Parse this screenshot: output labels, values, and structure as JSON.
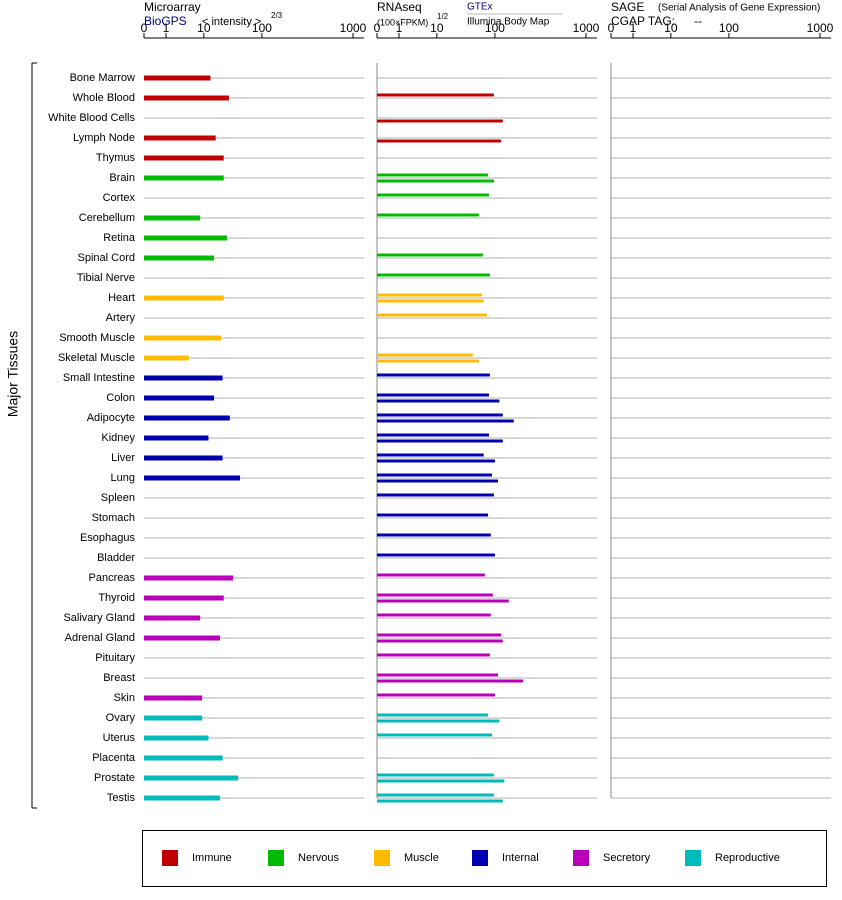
{
  "chart_data": {
    "type": "bar",
    "y_axis_label": "Major Tissues",
    "categories": [
      "Bone Marrow",
      "Whole Blood",
      "White Blood Cells",
      "Lymph Node",
      "Thymus",
      "Brain",
      "Cortex",
      "Cerebellum",
      "Retina",
      "Spinal Cord",
      "Tibial Nerve",
      "Heart",
      "Artery",
      "Smooth Muscle",
      "Skeletal Muscle",
      "Small Intestine",
      "Colon",
      "Adipocyte",
      "Kidney",
      "Liver",
      "Lung",
      "Spleen",
      "Stomach",
      "Esophagus",
      "Bladder",
      "Pancreas",
      "Thyroid",
      "Salivary Gland",
      "Adrenal Gland",
      "Pituitary",
      "Breast",
      "Skin",
      "Ovary",
      "Uterus",
      "Placenta",
      "Prostate",
      "Testis"
    ],
    "category_groups": [
      "Immune",
      "Immune",
      "Immune",
      "Immune",
      "Immune",
      "Nervous",
      "Nervous",
      "Nervous",
      "Nervous",
      "Nervous",
      "Nervous",
      "Muscle",
      "Muscle",
      "Muscle",
      "Muscle",
      "Internal",
      "Internal",
      "Internal",
      "Internal",
      "Internal",
      "Internal",
      "Internal",
      "Internal",
      "Internal",
      "Internal",
      "Secretory",
      "Secretory",
      "Secretory",
      "Secretory",
      "Secretory",
      "Secretory",
      "Secretory",
      "Reproductive",
      "Reproductive",
      "Reproductive",
      "Reproductive",
      "Reproductive"
    ],
    "legend": [
      {
        "name": "Immune",
        "color": "#c00000"
      },
      {
        "name": "Nervous",
        "color": "#00bb00"
      },
      {
        "name": "Muscle",
        "color": "#ffbb00"
      },
      {
        "name": "Internal",
        "color": "#0000b0"
      },
      {
        "name": "Secretory",
        "color": "#bb00bb"
      },
      {
        "name": "Reproductive",
        "color": "#00bbbb"
      }
    ],
    "xlim": [
      0,
      1000
    ],
    "xticks": [
      0,
      1,
      10,
      100,
      1000
    ],
    "panels": [
      {
        "title": "Microarray",
        "axis_label": "< intensity >",
        "axis_label_exponent": "2/3",
        "series": [
          {
            "name": "BioGPS",
            "values": [
              13,
              27,
              null,
              16,
              22,
              22,
              null,
              8,
              25,
              15,
              null,
              22,
              null,
              20,
              4,
              21,
              15,
              28,
              12,
              21,
              42,
              null,
              null,
              null,
              null,
              32,
              22,
              8,
              19,
              null,
              null,
              9,
              9,
              12,
              21,
              39,
              19
            ]
          }
        ]
      },
      {
        "title": "RNAseq",
        "axis_label": "(100×FPKM)",
        "axis_label_exponent": "1/2",
        "series": [
          {
            "name": "GTEx",
            "values": [
              null,
              96,
              null,
              null,
              null,
              76,
              79,
              53,
              null,
              62,
              82,
              60,
              73,
              null,
              42,
              82,
              79,
              122,
              79,
              64,
              89,
              96,
              76,
              85,
              100,
              67,
              92,
              85,
              117,
              82,
              108,
              100,
              76,
              89,
              null,
              96,
              96
            ]
          },
          {
            "name": "Illumina Body Map",
            "values": [
              null,
              null,
              122,
              117,
              null,
              96,
              null,
              null,
              null,
              null,
              null,
              64,
              null,
              null,
              53,
              null,
              112,
              161,
              122,
              100,
              108,
              null,
              null,
              null,
              null,
              null,
              142,
              null,
              122,
              null,
              204,
              null,
              112,
              null,
              null,
              127,
              122
            ]
          }
        ]
      },
      {
        "title": "SAGE",
        "subtitle": "(Serial Analysis of Gene Expression)",
        "tag_label": "CGAP TAG:",
        "tag_value": "--",
        "series": []
      }
    ]
  }
}
